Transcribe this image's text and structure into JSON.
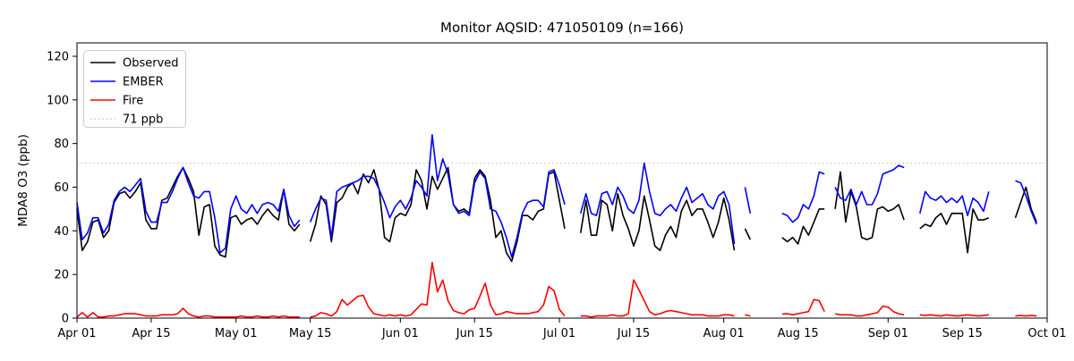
{
  "chart_data": {
    "type": "line",
    "title": "Monitor AQSID: 471050109 (n=166)",
    "xlabel": "",
    "ylabel": "MDA8 O3 (ppb)",
    "ylim": [
      0,
      126
    ],
    "y_ticks": [
      0,
      20,
      40,
      60,
      80,
      100,
      120
    ],
    "x_range_days": 183,
    "x_start": "Apr 01",
    "x_ticks": [
      {
        "label": "Apr 01",
        "day": 0
      },
      {
        "label": "Apr 15",
        "day": 14
      },
      {
        "label": "May 01",
        "day": 30
      },
      {
        "label": "May 15",
        "day": 44
      },
      {
        "label": "Jun 01",
        "day": 61
      },
      {
        "label": "Jun 15",
        "day": 75
      },
      {
        "label": "Jul 01",
        "day": 91
      },
      {
        "label": "Jul 15",
        "day": 105
      },
      {
        "label": "Aug 01",
        "day": 122
      },
      {
        "label": "Aug 15",
        "day": 136
      },
      {
        "label": "Sep 01",
        "day": 153
      },
      {
        "label": "Sep 15",
        "day": 167
      },
      {
        "label": "Oct 01",
        "day": 183
      }
    ],
    "reference_line": {
      "label": "71 ppb",
      "value": 71,
      "color": "#c9c9c9",
      "style": "dotted"
    },
    "legend_position": "upper left",
    "grid": false,
    "series": [
      {
        "name": "Observed",
        "color": "#000000",
        "values": [
          50,
          31,
          35,
          44,
          45,
          37,
          40,
          53,
          57,
          58,
          55,
          58,
          62,
          45,
          41,
          41,
          54,
          55,
          60,
          65,
          69,
          64,
          58,
          38,
          51,
          52,
          33,
          29,
          28,
          46,
          47,
          43,
          45,
          46,
          43,
          47,
          50,
          47,
          45,
          59,
          43,
          40,
          43,
          null,
          35,
          43,
          56,
          52,
          35,
          53,
          55,
          60,
          62,
          57,
          66,
          62,
          68,
          59,
          37,
          35,
          46,
          48,
          47,
          52,
          68,
          63,
          50,
          65,
          59,
          64,
          69,
          52,
          49,
          50,
          48,
          64,
          68,
          65,
          54,
          37,
          40,
          30,
          26,
          35,
          47,
          47,
          45,
          49,
          50,
          66,
          67,
          54,
          41,
          null,
          null,
          39,
          54,
          38,
          38,
          54,
          52,
          40,
          57,
          47,
          41,
          33,
          40,
          56,
          45,
          33,
          31,
          38,
          42,
          37,
          49,
          54,
          47,
          50,
          50,
          44,
          37,
          44,
          55,
          45,
          31,
          null,
          41,
          36,
          null,
          null,
          null,
          null,
          null,
          37,
          35,
          37,
          34,
          42,
          38,
          44,
          50,
          50,
          null,
          50,
          67,
          44,
          58,
          51,
          37,
          36,
          37,
          50,
          51,
          49,
          50,
          52,
          45,
          null,
          null,
          41,
          43,
          42,
          46,
          48,
          43,
          48,
          48,
          48,
          30,
          50,
          45,
          45,
          46,
          null,
          null,
          null,
          null,
          46,
          53,
          60,
          50,
          44
        ]
      },
      {
        "name": "EMBER",
        "color": "#0000ff",
        "values": [
          53,
          36,
          39,
          46,
          46,
          39,
          43,
          54,
          58,
          60,
          58,
          61,
          64,
          49,
          44,
          44,
          53,
          53,
          58,
          64,
          69,
          62,
          56,
          55,
          58,
          58,
          46,
          30,
          32,
          50,
          56,
          50,
          48,
          52,
          48,
          52,
          53,
          52,
          49,
          59,
          47,
          42,
          45,
          null,
          44,
          50,
          55,
          54,
          37,
          58,
          60,
          61,
          62,
          63,
          65,
          65,
          64,
          59,
          53,
          46,
          51,
          54,
          50,
          55,
          63,
          60,
          56,
          84,
          63,
          73,
          66,
          52,
          48,
          49,
          47,
          62,
          67,
          64,
          50,
          49,
          44,
          37,
          28,
          37,
          48,
          53,
          54,
          54,
          51,
          67,
          68,
          61,
          52,
          null,
          null,
          48,
          57,
          48,
          47,
          57,
          58,
          52,
          60,
          56,
          50,
          48,
          54,
          71,
          58,
          48,
          47,
          50,
          52,
          49,
          55,
          60,
          53,
          55,
          57,
          52,
          50,
          56,
          58,
          52,
          34,
          null,
          60,
          48,
          null,
          null,
          null,
          null,
          null,
          48,
          47,
          44,
          46,
          52,
          50,
          56,
          67,
          66,
          null,
          60,
          55,
          54,
          59,
          52,
          58,
          52,
          52,
          57,
          66,
          67,
          68,
          70,
          69,
          null,
          null,
          48,
          58,
          55,
          54,
          56,
          53,
          55,
          53,
          56,
          47,
          55,
          53,
          49,
          58,
          null,
          null,
          null,
          null,
          63,
          62,
          56,
          49,
          43
        ]
      },
      {
        "name": "Fire",
        "color": "#ff0000",
        "values": [
          0.5,
          2.5,
          0.5,
          2.5,
          0.5,
          0.5,
          1,
          1,
          1.5,
          2,
          2,
          2,
          1.5,
          1,
          1,
          1,
          1.5,
          1.5,
          1.5,
          2,
          4.5,
          2,
          1,
          0.5,
          1,
          1,
          0.5,
          0.5,
          0.5,
          0.5,
          0.5,
          1,
          0.5,
          0.5,
          1,
          0.5,
          0.5,
          1,
          0.5,
          1,
          0.5,
          0.5,
          0.5,
          null,
          0.5,
          1,
          2.5,
          2,
          1,
          3,
          8.5,
          6,
          8,
          10,
          10.5,
          5,
          2,
          1.5,
          1,
          1.5,
          1,
          1.5,
          1,
          1.5,
          4,
          6.5,
          6,
          25.5,
          12,
          17.5,
          8,
          3.5,
          2.5,
          2,
          3.8,
          4.5,
          10,
          16,
          6,
          1.5,
          2,
          3,
          2.5,
          2,
          2,
          2,
          2.5,
          3,
          6,
          14.5,
          12.5,
          4,
          1,
          null,
          null,
          1,
          1,
          0.5,
          1,
          1,
          1,
          1.5,
          1,
          1,
          2,
          17.5,
          13,
          8,
          3,
          1.5,
          2,
          3,
          3.5,
          3,
          2.5,
          2,
          1.5,
          1.5,
          1.5,
          1,
          1,
          1,
          1.5,
          1.5,
          1,
          null,
          1.5,
          1,
          null,
          null,
          null,
          null,
          null,
          1.8,
          2,
          1.5,
          2,
          2.5,
          3,
          8.5,
          8,
          3,
          null,
          2,
          1.5,
          1.5,
          1.5,
          1,
          1,
          1.5,
          2,
          2.5,
          5.5,
          5,
          3,
          2,
          1.5,
          null,
          null,
          1.5,
          1.2,
          1.5,
          1.2,
          1,
          1.5,
          1.2,
          1,
          1.2,
          1.5,
          1.2,
          1,
          1.2,
          1.5,
          null,
          null,
          null,
          null,
          1,
          1.2,
          1,
          1.2,
          1
        ]
      }
    ]
  },
  "legend": {
    "observed_label": "Observed",
    "ember_label": "EMBER",
    "fire_label": "Fire",
    "ref_label": "71 ppb"
  }
}
